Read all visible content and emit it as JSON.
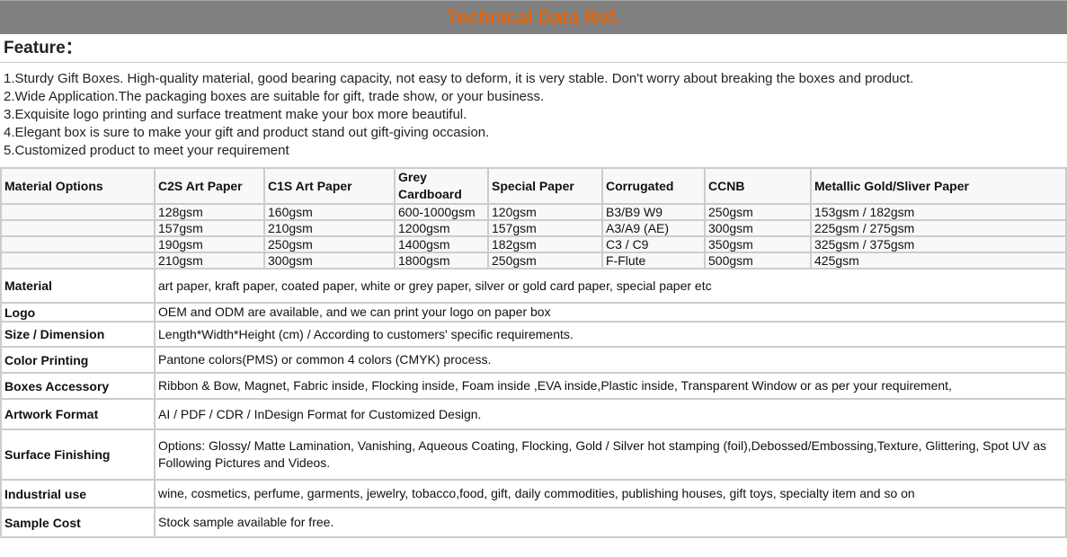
{
  "title": "Technical Data Ref.",
  "feature_heading": "Feature：",
  "features": [
    "1.Sturdy Gift Boxes. High-quality material, good bearing capacity, not easy to deform, it is very stable. Don't worry about breaking the boxes and product.",
    "2.Wide Application.The packaging boxes are suitable for gift, trade show, or your business.",
    "3.Exquisite logo printing and surface treatment make your box more beautiful.",
    "4.Elegant box is sure to make your gift and product stand out gift-giving occasion.",
    "5.Customized product to meet your requirement"
  ],
  "material_options": {
    "headers": [
      "Material Options",
      "C2S Art Paper",
      "C1S Art Paper",
      "Grey Cardboard",
      "Special Paper",
      "Corrugated",
      "CCNB",
      "Metallic Gold/Sliver Paper"
    ],
    "rows": [
      [
        "",
        "128gsm",
        "160gsm",
        "600-1000gsm",
        "120gsm",
        "B3/B9 W9",
        "250gsm",
        "153gsm / 182gsm"
      ],
      [
        "",
        "157gsm",
        "210gsm",
        "1200gsm",
        "157gsm",
        "A3/A9 (AE)",
        "300gsm",
        "225gsm / 275gsm"
      ],
      [
        "",
        "190gsm",
        "250gsm",
        "1400gsm",
        "182gsm",
        "C3 / C9",
        "350gsm",
        "325gsm / 375gsm"
      ],
      [
        "",
        "210gsm",
        "300gsm",
        "1800gsm",
        "250gsm",
        "F-Flute",
        "500gsm",
        "425gsm"
      ]
    ]
  },
  "specs": [
    {
      "label": "Material",
      "value": "art paper, kraft paper, coated paper, white or grey paper, silver or gold card paper, special paper etc"
    },
    {
      "label": "Logo",
      "value": "OEM and ODM are available, and we can print your logo on paper box"
    },
    {
      "label": "Size / Dimension",
      "value": "Length*Width*Height (cm) / According to customers' specific requirements."
    },
    {
      "label": "Color Printing",
      "value": "Pantone colors(PMS) or common 4 colors (CMYK) process."
    },
    {
      "label": "Boxes Accessory",
      "value": "Ribbon & Bow, Magnet, Fabric inside, Flocking inside, Foam inside ,EVA inside,Plastic inside, Transparent Window or as per your requirement,"
    },
    {
      "label": "Artwork Format",
      "value": "AI / PDF / CDR / InDesign Format for Customized Design."
    },
    {
      "label": "Surface Finishing",
      "value": "Options: Glossy/ Matte Lamination, Vanishing, Aqueous Coating, Flocking, Gold / Silver hot stamping (foil),Debossed/Embossing,Texture, Glittering, Spot UV as Following Pictures and Videos."
    },
    {
      "label": "Industrial use",
      "value": "wine, cosmetics, perfume, garments, jewelry, tobacco,food, gift, daily commodities, publishing houses, gift toys, specialty item and so on"
    },
    {
      "label": "Sample Cost",
      "value": "Stock sample available for free."
    }
  ]
}
